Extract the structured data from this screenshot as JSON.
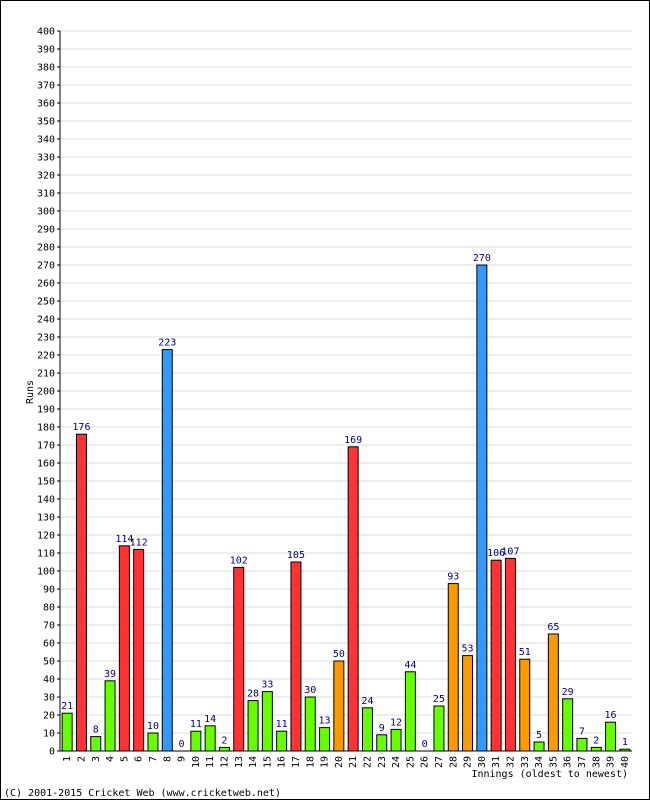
{
  "chart_data": {
    "type": "bar",
    "title": "",
    "xlabel": "Innings (oldest to newest)",
    "ylabel": "Runs",
    "ylim": [
      0,
      400
    ],
    "ytick_step": 10,
    "grid": true,
    "legend": "none",
    "colors": {
      "under_50": "#66ff00",
      "fifty": "#ff9900",
      "century": "#ff3333",
      "double_century": "#3399ff",
      "value_label": "#000080",
      "gridline": "#dddddd"
    },
    "categories": [
      "1",
      "2",
      "3",
      "4",
      "5",
      "6",
      "7",
      "8",
      "9",
      "10",
      "11",
      "12",
      "13",
      "14",
      "15",
      "16",
      "17",
      "18",
      "19",
      "20",
      "21",
      "22",
      "23",
      "24",
      "25",
      "26",
      "27",
      "28",
      "29",
      "30",
      "31",
      "32",
      "33",
      "34",
      "35",
      "36",
      "37",
      "38",
      "39",
      "40"
    ],
    "values": [
      21,
      176,
      8,
      39,
      114,
      112,
      10,
      223,
      0,
      11,
      14,
      2,
      102,
      28,
      33,
      11,
      105,
      30,
      13,
      50,
      169,
      24,
      9,
      12,
      44,
      0,
      25,
      93,
      53,
      270,
      106,
      107,
      51,
      5,
      65,
      29,
      7,
      2,
      16,
      1
    ]
  },
  "footer": {
    "copyright": "(C) 2001-2015 Cricket Web (www.cricketweb.net)"
  }
}
